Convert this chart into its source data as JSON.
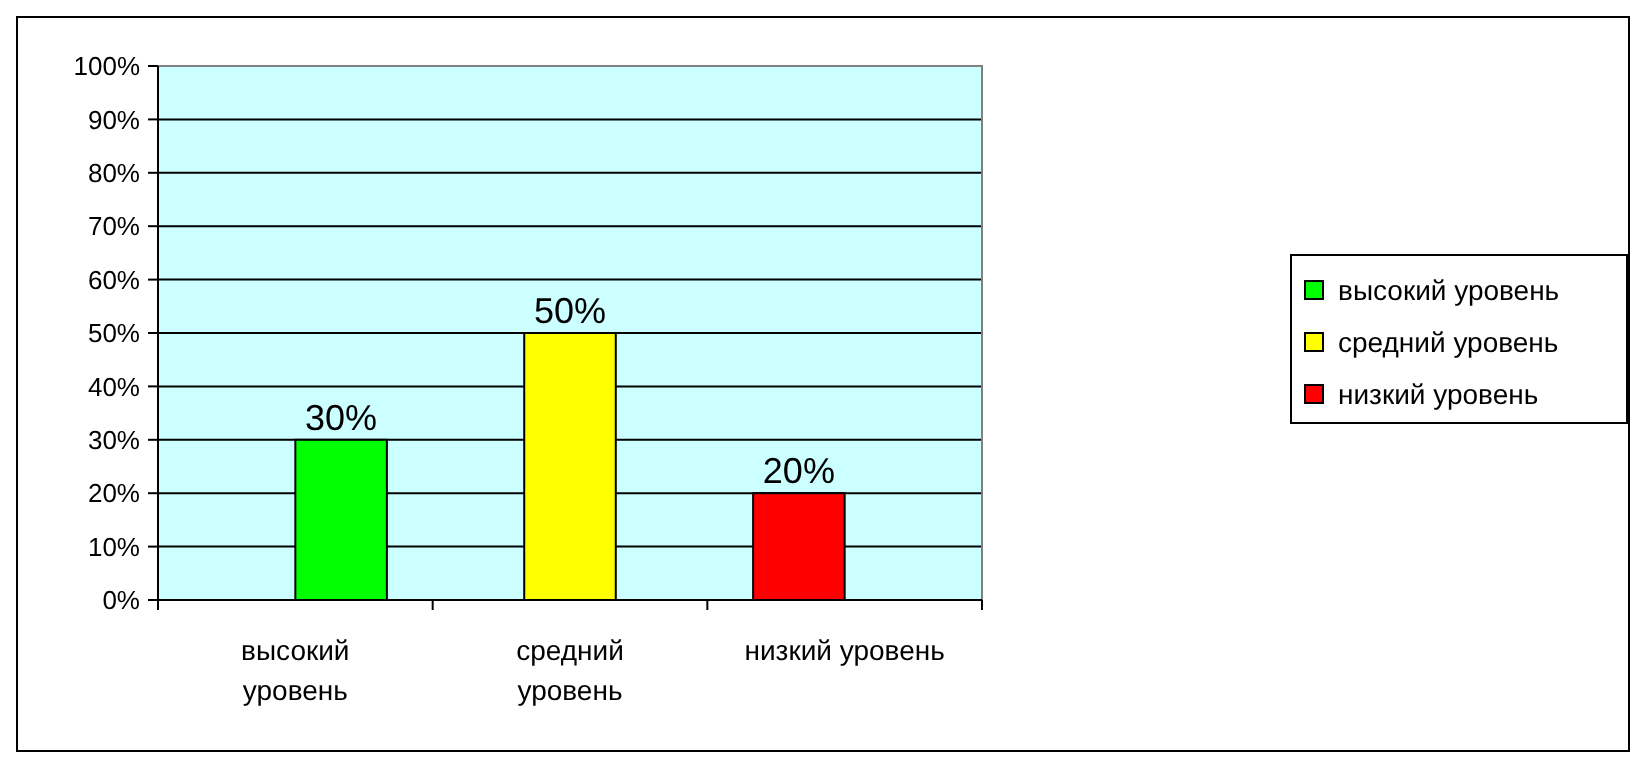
{
  "chart_data": {
    "type": "bar",
    "categories": [
      "высокий уровень",
      "средний уровень",
      "низкий уровень"
    ],
    "series": [
      {
        "name": "высокий уровень",
        "color": "#00ff00",
        "values": [
          30,
          null,
          null
        ],
        "value_labels": [
          "30%",
          null,
          null
        ]
      },
      {
        "name": "средний уровень",
        "color": "#ffff00",
        "values": [
          null,
          50,
          null
        ],
        "value_labels": [
          null,
          "50%",
          null
        ]
      },
      {
        "name": "низкий уровень",
        "color": "#ff0000",
        "values": [
          null,
          null,
          20
        ],
        "value_labels": [
          null,
          null,
          "20%"
        ]
      }
    ],
    "ylim": [
      0,
      100
    ],
    "yticks": [
      {
        "value": 0,
        "label": "0%"
      },
      {
        "value": 10,
        "label": "10%"
      },
      {
        "value": 20,
        "label": "20%"
      },
      {
        "value": 30,
        "label": "30%"
      },
      {
        "value": 40,
        "label": "40%"
      },
      {
        "value": 50,
        "label": "50%"
      },
      {
        "value": 60,
        "label": "60%"
      },
      {
        "value": 70,
        "label": "70%"
      },
      {
        "value": 80,
        "label": "80%"
      },
      {
        "value": 90,
        "label": "90%"
      },
      {
        "value": 100,
        "label": "100%"
      }
    ],
    "grid": "y",
    "legend": "right"
  }
}
